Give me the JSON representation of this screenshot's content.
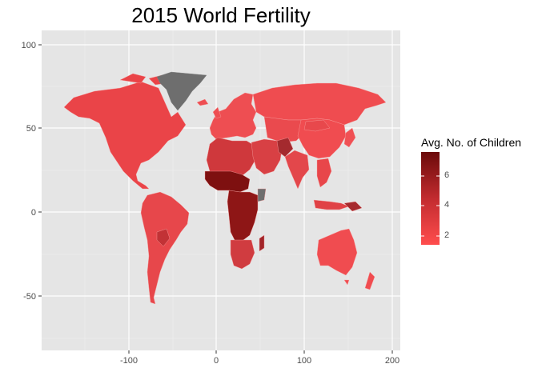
{
  "title": "2015 World Fertility",
  "legend": {
    "title": "Avg. No. of Children",
    "ticks": [
      "2",
      "4",
      "6"
    ],
    "low_color": "#ff4d4d",
    "high_color": "#6b0a0a"
  },
  "axes": {
    "x_ticks": [
      "-100",
      "0",
      "100",
      "200"
    ],
    "y_ticks": [
      "100",
      "50",
      "0",
      "-50"
    ],
    "xlim": [
      -200,
      210
    ],
    "ylim": [
      -83,
      105
    ]
  },
  "colors": {
    "panel": "#e5e5e5",
    "grid_major": "#ffffff",
    "grid_minor": "#f0f0f0",
    "no_data": "#6e6e6e",
    "low_fertility": "#f15054",
    "medium_fertility": "#d43a3e",
    "high_fertility": "#8e1616"
  }
}
